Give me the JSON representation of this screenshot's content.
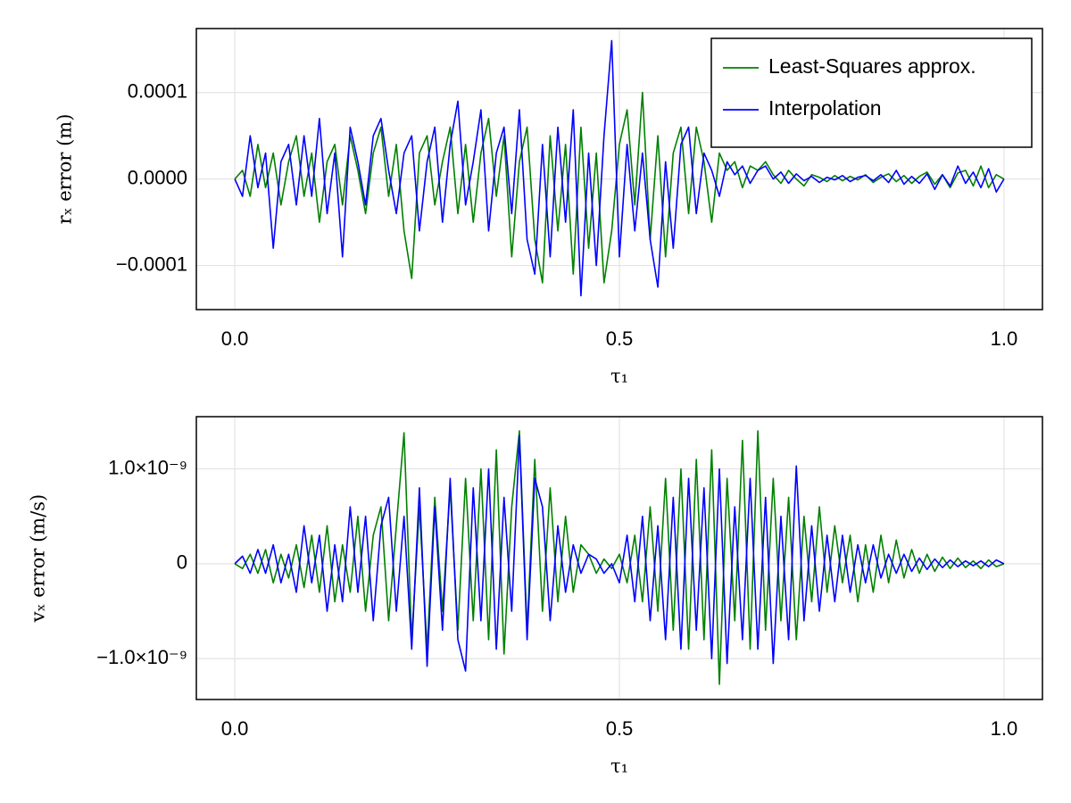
{
  "chart_data": [
    {
      "type": "line",
      "xlabel": "τ₁",
      "ylabel": "rₓ error (m)",
      "xlim": [
        -0.05,
        1.05
      ],
      "ylim": [
        -0.000151,
        0.000174
      ],
      "xticks": [
        {
          "value": 0,
          "label": "0.0"
        },
        {
          "value": 0.5,
          "label": "0.5"
        },
        {
          "value": 1,
          "label": "1.0"
        }
      ],
      "yticks": [
        {
          "value": -0.0001,
          "label": "−0.0001"
        },
        {
          "value": 0,
          "label": "0.0000"
        },
        {
          "value": 0.0001,
          "label": "0.0001"
        }
      ],
      "grid": true,
      "legend": "upper right",
      "x": [
        0,
        0.01,
        0.02,
        0.03,
        0.04,
        0.05,
        0.06,
        0.07,
        0.08,
        0.09,
        0.1,
        0.11,
        0.12,
        0.13,
        0.14,
        0.15,
        0.16,
        0.17,
        0.18,
        0.19,
        0.2,
        0.21,
        0.22,
        0.23,
        0.24,
        0.25,
        0.26,
        0.27,
        0.28,
        0.29,
        0.3,
        0.31,
        0.32,
        0.33,
        0.34,
        0.35,
        0.36,
        0.37,
        0.38,
        0.39,
        0.4,
        0.41,
        0.42,
        0.43,
        0.44,
        0.45,
        0.46,
        0.47,
        0.48,
        0.49,
        0.5,
        0.51,
        0.52,
        0.53,
        0.54,
        0.55,
        0.56,
        0.57,
        0.58,
        0.59,
        0.6,
        0.61,
        0.62,
        0.63,
        0.64,
        0.65,
        0.66,
        0.67,
        0.68,
        0.69,
        0.7,
        0.71,
        0.72,
        0.73,
        0.74,
        0.75,
        0.76,
        0.77,
        0.78,
        0.79,
        0.8,
        0.81,
        0.82,
        0.83,
        0.84,
        0.85,
        0.86,
        0.87,
        0.88,
        0.89,
        0.9,
        0.91,
        0.92,
        0.93,
        0.94,
        0.95,
        0.96,
        0.97,
        0.98,
        0.99,
        1
      ],
      "series": [
        {
          "name": "Least-Squares approx.",
          "color": "#008000",
          "values": [
            0,
            1e-05,
            -2e-05,
            4e-05,
            -1e-05,
            3e-05,
            -3e-05,
            2e-05,
            5e-05,
            -2e-05,
            3e-05,
            -5e-05,
            2e-05,
            4e-05,
            -3e-05,
            5e-05,
            1e-05,
            -4e-05,
            3e-05,
            6e-05,
            -2e-05,
            4e-05,
            -6e-05,
            -0.000115,
            3e-05,
            5e-05,
            -3e-05,
            2e-05,
            6e-05,
            -4e-05,
            4e-05,
            -5e-05,
            3e-05,
            7e-05,
            -2e-05,
            5e-05,
            -9e-05,
            2e-05,
            6e-05,
            -7e-05,
            -0.00012,
            5e-05,
            -6e-05,
            4e-05,
            -0.00011,
            6e-05,
            -8e-05,
            3e-05,
            -0.00012,
            -6e-05,
            4e-05,
            8e-05,
            -3e-05,
            0.0001,
            -7e-05,
            5e-05,
            -9e-05,
            3e-05,
            6e-05,
            -4e-05,
            6e-05,
            2e-05,
            -5e-05,
            3e-05,
            1e-05,
            2e-05,
            -1e-05,
            1.5e-05,
            1e-05,
            2e-05,
            5e-06,
            -5e-06,
            1e-05,
            0,
            -8e-06,
            5e-06,
            2e-06,
            -3e-06,
            4e-06,
            -2e-06,
            3e-06,
            -1e-06,
            5e-06,
            -4e-06,
            2e-06,
            6e-06,
            -3e-06,
            4e-06,
            -5e-06,
            3e-06,
            8e-06,
            -6e-06,
            5e-06,
            -1e-05,
            7e-06,
            1e-05,
            -8e-06,
            1.5e-05,
            -1e-05,
            5e-06,
            0
          ]
        },
        {
          "name": "Interpolation",
          "color": "#0000ff",
          "values": [
            0,
            -2e-05,
            5e-05,
            -1e-05,
            3e-05,
            -8e-05,
            2e-05,
            4e-05,
            -3e-05,
            5e-05,
            -2e-05,
            7e-05,
            -4e-05,
            3e-05,
            -9e-05,
            6e-05,
            2e-05,
            -3e-05,
            5e-05,
            7e-05,
            1e-05,
            -4e-05,
            3e-05,
            5e-05,
            -6e-05,
            2e-05,
            6e-05,
            -5e-05,
            4e-05,
            9e-05,
            -3e-05,
            2e-05,
            8e-05,
            -6e-05,
            3e-05,
            6e-05,
            -4e-05,
            8e-05,
            -7e-05,
            -0.00011,
            4e-05,
            -9e-05,
            6e-05,
            -5e-05,
            8e-05,
            -0.000135,
            3e-05,
            -0.0001,
            5e-05,
            0.00016,
            -9e-05,
            4e-05,
            -6e-05,
            3e-05,
            -7e-05,
            -0.000125,
            2e-05,
            -8e-05,
            4e-05,
            6e-05,
            -4e-05,
            3e-05,
            1e-05,
            -2e-05,
            2e-05,
            5e-06,
            1.5e-05,
            -5e-06,
            1e-05,
            1.5e-05,
            0,
            8e-06,
            -5e-06,
            6e-06,
            -2e-06,
            3e-06,
            -4e-06,
            2e-06,
            -1e-06,
            4e-06,
            -3e-06,
            2e-06,
            4e-06,
            -2e-06,
            5e-06,
            -4e-06,
            1e-05,
            -6e-06,
            3e-06,
            -5e-06,
            6e-06,
            -1.2e-05,
            5e-06,
            -8e-06,
            1.5e-05,
            -5e-06,
            8e-06,
            -1e-05,
            1.2e-05,
            -1.5e-05,
            0
          ]
        }
      ]
    },
    {
      "type": "line",
      "xlabel": "τ₁",
      "ylabel": "vₓ error (m/s)",
      "xlim": [
        -0.05,
        1.05
      ],
      "ylim": [
        -1.43e-09,
        1.55e-09
      ],
      "xticks": [
        {
          "value": 0,
          "label": "0.0"
        },
        {
          "value": 0.5,
          "label": "0.5"
        },
        {
          "value": 1,
          "label": "1.0"
        }
      ],
      "yticks": [
        {
          "value": -1e-09,
          "label": "−1.0×10⁻⁹"
        },
        0,
        {
          "value": 1e-09,
          "label": "1.0×10⁻⁹"
        }
      ],
      "grid": true,
      "x": [
        0,
        0.01,
        0.02,
        0.03,
        0.04,
        0.05,
        0.06,
        0.07,
        0.08,
        0.09,
        0.1,
        0.11,
        0.12,
        0.13,
        0.14,
        0.15,
        0.16,
        0.17,
        0.18,
        0.19,
        0.2,
        0.21,
        0.22,
        0.23,
        0.24,
        0.25,
        0.26,
        0.27,
        0.28,
        0.29,
        0.3,
        0.31,
        0.32,
        0.33,
        0.34,
        0.35,
        0.36,
        0.37,
        0.38,
        0.39,
        0.4,
        0.41,
        0.42,
        0.43,
        0.44,
        0.45,
        0.46,
        0.47,
        0.48,
        0.49,
        0.5,
        0.51,
        0.52,
        0.53,
        0.54,
        0.55,
        0.56,
        0.57,
        0.58,
        0.59,
        0.6,
        0.61,
        0.62,
        0.63,
        0.64,
        0.65,
        0.66,
        0.67,
        0.68,
        0.69,
        0.7,
        0.71,
        0.72,
        0.73,
        0.74,
        0.75,
        0.76,
        0.77,
        0.78,
        0.79,
        0.8,
        0.81,
        0.82,
        0.83,
        0.84,
        0.85,
        0.86,
        0.87,
        0.88,
        0.89,
        0.9,
        0.91,
        0.92,
        0.93,
        0.94,
        0.95,
        0.96,
        0.97,
        0.98,
        0.99,
        1
      ],
      "series": [
        {
          "color": "#008000",
          "values": [
            0,
            -5e-11,
            1e-10,
            -1e-10,
            1.5e-10,
            -2e-10,
            1e-10,
            -1.5e-10,
            2e-10,
            -2.5e-10,
            3e-10,
            -3e-10,
            4e-10,
            -4e-10,
            2e-10,
            -3e-10,
            5e-10,
            -5e-10,
            3e-10,
            6e-10,
            -6e-10,
            4e-10,
            1.38e-09,
            -8e-10,
            6e-10,
            -9e-10,
            7e-10,
            -5e-10,
            8e-10,
            -7e-10,
            9e-10,
            -6e-10,
            1e-09,
            -8e-10,
            1.2e-09,
            -9.5e-10,
            6e-10,
            1.4e-09,
            -7e-10,
            1.1e-09,
            -5e-10,
            8e-10,
            -4e-10,
            5e-10,
            -3e-10,
            2e-10,
            1e-10,
            -1e-10,
            5e-11,
            -5e-11,
            1e-10,
            -2e-10,
            3e-10,
            -4e-10,
            6e-10,
            -5e-10,
            9e-10,
            -7e-10,
            1e-09,
            -9e-10,
            1.1e-09,
            -8e-10,
            1.2e-09,
            -1.27e-09,
            9e-10,
            -6e-10,
            1.3e-09,
            -9e-10,
            1.4e-09,
            -7e-10,
            9e-10,
            -6e-10,
            7e-10,
            -8e-10,
            5e-10,
            -4e-10,
            6e-10,
            -3e-10,
            4e-10,
            -2e-10,
            3e-10,
            -4e-10,
            2e-10,
            -3e-10,
            3e-10,
            -2e-10,
            2.5e-10,
            -1.5e-10,
            1.5e-10,
            -1e-10,
            1e-10,
            -8e-11,
            7e-11,
            -5e-11,
            6e-11,
            -4e-11,
            3e-11,
            -5e-11,
            4e-11,
            -3e-11,
            0
          ]
        },
        {
          "color": "#0000ff",
          "values": [
            0,
            8e-11,
            -1e-10,
            1.5e-10,
            -1e-10,
            2e-10,
            -2e-10,
            1e-10,
            -3e-10,
            4e-10,
            -2e-10,
            3e-10,
            -5e-10,
            2e-10,
            -4e-10,
            6e-10,
            -3e-10,
            5e-10,
            -6e-10,
            4e-10,
            7e-10,
            -5e-10,
            5e-10,
            -9e-10,
            8e-10,
            -1.08e-09,
            6e-10,
            -7e-10,
            9e-10,
            -8e-10,
            -1.13e-09,
            8e-10,
            -6e-10,
            1e-09,
            -9e-10,
            7e-10,
            -5e-10,
            1.35e-09,
            -8e-10,
            9e-10,
            6e-10,
            -6e-10,
            4e-10,
            -3e-10,
            2e-10,
            -1e-10,
            1e-10,
            5e-11,
            -1e-10,
            0,
            -2e-10,
            3e-10,
            -4e-10,
            5e-10,
            -6e-10,
            4e-10,
            -8e-10,
            7e-10,
            -9e-10,
            9e-10,
            -7e-10,
            8e-10,
            -1e-09,
            1e-09,
            -1.05e-09,
            6e-10,
            -8e-10,
            9e-10,
            -9e-10,
            7e-10,
            -1.05e-09,
            5e-10,
            -8e-10,
            1.03e-09,
            -6e-10,
            4e-10,
            -5e-10,
            3e-10,
            -4e-10,
            3e-10,
            -3e-10,
            2e-10,
            -2e-10,
            2e-10,
            -1.5e-10,
            1e-10,
            -1e-10,
            1e-10,
            -8e-11,
            6e-11,
            -6e-11,
            5e-11,
            -4e-11,
            4e-11,
            -3e-11,
            3e-11,
            -2e-11,
            3e-11,
            -3e-11,
            4e-11,
            0
          ]
        }
      ]
    }
  ]
}
